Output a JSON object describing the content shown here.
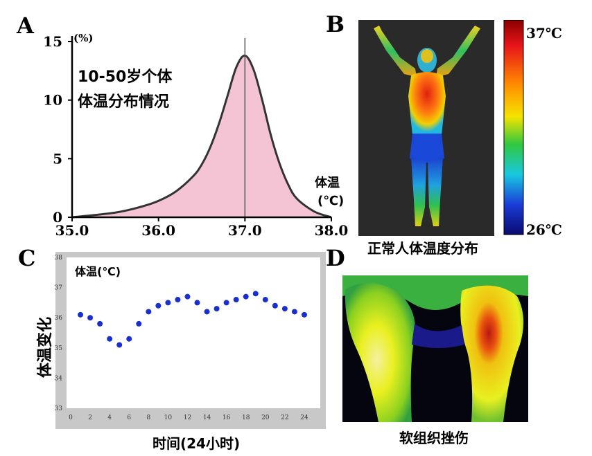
{
  "panels": {
    "a": {
      "label": "A"
    },
    "b": {
      "label": "B",
      "caption": "正常人体温度分布",
      "scale_max": "37℃",
      "scale_min": "26℃"
    },
    "c": {
      "label": "C"
    },
    "d": {
      "label": "D",
      "caption": "软组织挫伤"
    }
  },
  "chart_data": [
    {
      "type": "area",
      "panel": "A",
      "title": "10-50岁个体 体温分布情况",
      "title_lines": [
        "10-50岁个体",
        "体温分布情况"
      ],
      "xlabel": "体温(℃)",
      "xlabel_lines": [
        "体温",
        "(℃)"
      ],
      "ylabel": "(%)",
      "xlim": [
        35.0,
        38.0
      ],
      "ylim": [
        0,
        15
      ],
      "xticks": [
        "35.0",
        "36.0",
        "37.0",
        "38.0"
      ],
      "yticks": [
        "0",
        "5",
        "10",
        "15"
      ],
      "peak_marker_x": 37.0,
      "fill_color": "#f4c4d4",
      "series": [
        {
          "x": [
            35.0,
            35.5,
            35.8,
            36.0,
            36.2,
            36.4,
            36.5,
            36.6,
            36.7,
            36.8,
            36.9,
            37.0,
            37.1,
            37.2,
            37.3,
            37.4,
            37.5,
            37.6,
            37.8,
            38.0
          ],
          "y": [
            0.0,
            0.4,
            0.9,
            1.4,
            2.2,
            3.5,
            4.5,
            6.0,
            8.0,
            10.4,
            12.8,
            13.8,
            12.6,
            10.0,
            7.0,
            4.6,
            2.8,
            1.6,
            0.5,
            0.0
          ]
        }
      ]
    },
    {
      "type": "scatter",
      "panel": "C",
      "title": "体温(℃)",
      "xlabel": "时间(24小时)",
      "ylabel": "体温变化",
      "xlim": [
        0,
        25
      ],
      "ylim": [
        33,
        38
      ],
      "xticks": [
        "0",
        "2",
        "4",
        "6",
        "8",
        "10",
        "12",
        "14",
        "16",
        "18",
        "20",
        "22",
        "24"
      ],
      "yticks": [
        "33",
        "34",
        "35",
        "36",
        "37",
        "38"
      ],
      "grid": false,
      "point_color": "#1a2fd0",
      "series": [
        {
          "x": [
            1,
            2,
            3,
            4,
            5,
            6,
            7,
            8,
            9,
            10,
            11,
            12,
            13,
            14,
            15,
            16,
            17,
            18,
            19,
            20,
            21,
            22,
            23,
            24
          ],
          "y": [
            36.1,
            36.0,
            35.8,
            35.3,
            35.1,
            35.3,
            35.8,
            36.2,
            36.4,
            36.5,
            36.6,
            36.7,
            36.5,
            36.2,
            36.3,
            36.5,
            36.6,
            36.7,
            36.8,
            36.6,
            36.4,
            36.3,
            36.2,
            36.1
          ]
        }
      ]
    }
  ]
}
